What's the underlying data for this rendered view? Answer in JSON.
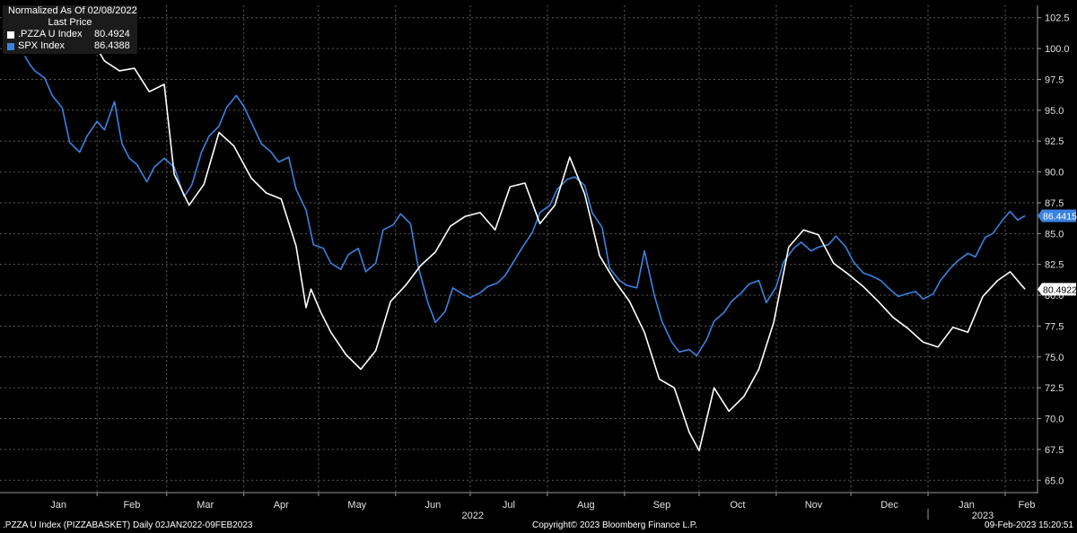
{
  "legend": {
    "header": "Normalized As Of 02/08/2022",
    "subheader": "Last Price"
  },
  "footer": {
    "left": ".PZZA U Index (PIZZABASKET)   Daily 02JAN2022-09FEB2023",
    "center": "Copyright© 2023 Bloomberg Finance L.P.",
    "right": "09-Feb-2023 15:20:51"
  },
  "chart_data": {
    "type": "line",
    "title": "",
    "xlabel": "",
    "ylabel": "",
    "ylim": [
      64.0,
      103.5
    ],
    "yticks": [
      65.0,
      67.5,
      70.0,
      72.5,
      75.0,
      77.5,
      80.0,
      82.5,
      85.0,
      87.5,
      90.0,
      92.5,
      95.0,
      97.5,
      100.0,
      102.5
    ],
    "x_months": [
      "Jan",
      "Feb",
      "Mar",
      "Apr",
      "May",
      "Jun",
      "Jul",
      "Aug",
      "Sep",
      "Oct",
      "Nov",
      "Dec",
      "Jan",
      "Feb"
    ],
    "x_years": [
      "2022",
      "2023"
    ],
    "grid": true,
    "legend_position": "top-left",
    "series": [
      {
        "name": ".PZZA U Index",
        "color": "#ffffff",
        "last_value": "80.4924",
        "axis_label": "80.4922",
        "x": [
          "2022-02-01",
          "2022-02-04",
          "2022-02-10",
          "2022-02-16",
          "2022-02-22",
          "2022-02-28",
          "2022-03-04",
          "2022-03-10",
          "2022-03-16",
          "2022-03-22",
          "2022-03-28",
          "2022-04-04",
          "2022-04-10",
          "2022-04-16",
          "2022-04-22",
          "2022-04-26",
          "2022-04-28",
          "2022-05-02",
          "2022-05-06",
          "2022-05-12",
          "2022-05-18",
          "2022-05-24",
          "2022-05-30",
          "2022-06-05",
          "2022-06-11",
          "2022-06-17",
          "2022-06-23",
          "2022-06-29",
          "2022-07-05",
          "2022-07-11",
          "2022-07-17",
          "2022-07-23",
          "2022-07-29",
          "2022-08-04",
          "2022-08-10",
          "2022-08-16",
          "2022-08-22",
          "2022-08-28",
          "2022-09-03",
          "2022-09-09",
          "2022-09-15",
          "2022-09-21",
          "2022-09-27",
          "2022-10-01",
          "2022-10-07",
          "2022-10-13",
          "2022-10-19",
          "2022-10-25",
          "2022-10-31",
          "2022-11-06",
          "2022-11-12",
          "2022-11-18",
          "2022-11-24",
          "2022-11-30",
          "2022-12-06",
          "2022-12-12",
          "2022-12-18",
          "2022-12-24",
          "2022-12-30",
          "2023-01-05",
          "2023-01-11",
          "2023-01-17",
          "2023-01-23",
          "2023-01-29",
          "2023-02-03",
          "2023-02-09"
        ],
        "values": [
          100.0,
          99.0,
          98.2,
          98.4,
          96.5,
          97.1,
          89.8,
          87.3,
          89.0,
          93.2,
          92.1,
          89.5,
          88.3,
          87.8,
          84.0,
          79.0,
          80.5,
          78.6,
          77.0,
          75.2,
          74.0,
          75.5,
          79.5,
          80.8,
          82.4,
          83.5,
          85.6,
          86.4,
          86.7,
          85.3,
          88.8,
          89.1,
          85.8,
          87.3,
          91.2,
          88.2,
          83.2,
          81.2,
          79.5,
          77.0,
          73.2,
          72.5,
          68.9,
          67.4,
          72.5,
          70.6,
          71.8,
          74.0,
          77.8,
          83.9,
          85.3,
          84.9,
          82.6,
          81.7,
          80.7,
          79.5,
          78.2,
          77.3,
          76.2,
          75.8,
          77.4,
          77.0,
          79.9,
          81.2,
          81.9,
          80.49
        ]
      },
      {
        "name": "SPX Index",
        "color": "#3b82e0",
        "last_value": "86.4388",
        "axis_label": "86.4415",
        "x": [
          "2022-01-03",
          "2022-01-05",
          "2022-01-07",
          "2022-01-11",
          "2022-01-14",
          "2022-01-18",
          "2022-01-21",
          "2022-01-25",
          "2022-01-28",
          "2022-02-01",
          "2022-02-04",
          "2022-02-08",
          "2022-02-11",
          "2022-02-14",
          "2022-02-17",
          "2022-02-21",
          "2022-02-24",
          "2022-02-28",
          "2022-03-04",
          "2022-03-08",
          "2022-03-11",
          "2022-03-15",
          "2022-03-18",
          "2022-03-22",
          "2022-03-25",
          "2022-03-29",
          "2022-04-01",
          "2022-04-05",
          "2022-04-08",
          "2022-04-12",
          "2022-04-15",
          "2022-04-19",
          "2022-04-22",
          "2022-04-26",
          "2022-04-29",
          "2022-05-03",
          "2022-05-06",
          "2022-05-10",
          "2022-05-13",
          "2022-05-17",
          "2022-05-20",
          "2022-05-24",
          "2022-05-27",
          "2022-05-31",
          "2022-06-03",
          "2022-06-07",
          "2022-06-10",
          "2022-06-14",
          "2022-06-17",
          "2022-06-21",
          "2022-06-24",
          "2022-06-28",
          "2022-07-01",
          "2022-07-05",
          "2022-07-08",
          "2022-07-12",
          "2022-07-15",
          "2022-07-19",
          "2022-07-22",
          "2022-07-26",
          "2022-07-29",
          "2022-08-02",
          "2022-08-05",
          "2022-08-09",
          "2022-08-12",
          "2022-08-16",
          "2022-08-19",
          "2022-08-23",
          "2022-08-26",
          "2022-08-30",
          "2022-09-02",
          "2022-09-06",
          "2022-09-09",
          "2022-09-13",
          "2022-09-16",
          "2022-09-20",
          "2022-09-23",
          "2022-09-27",
          "2022-09-30",
          "2022-10-04",
          "2022-10-07",
          "2022-10-11",
          "2022-10-14",
          "2022-10-18",
          "2022-10-21",
          "2022-10-25",
          "2022-10-28",
          "2022-11-01",
          "2022-11-04",
          "2022-11-08",
          "2022-11-11",
          "2022-11-15",
          "2022-11-18",
          "2022-11-22",
          "2022-11-25",
          "2022-11-29",
          "2022-12-02",
          "2022-12-06",
          "2022-12-09",
          "2022-12-13",
          "2022-12-16",
          "2022-12-20",
          "2022-12-23",
          "2022-12-27",
          "2022-12-30",
          "2023-01-03",
          "2023-01-06",
          "2023-01-10",
          "2023-01-13",
          "2023-01-17",
          "2023-01-20",
          "2023-01-24",
          "2023-01-27",
          "2023-01-31",
          "2023-02-03",
          "2023-02-06",
          "2023-02-09"
        ],
        "values": [
          99.4,
          98.7,
          98.2,
          97.6,
          96.2,
          95.2,
          92.4,
          91.6,
          92.9,
          94.1,
          93.4,
          95.7,
          92.3,
          91.1,
          90.6,
          89.2,
          90.4,
          91.1,
          90.4,
          88.0,
          88.9,
          91.6,
          92.9,
          93.7,
          95.2,
          96.2,
          95.3,
          93.6,
          92.3,
          91.6,
          90.8,
          91.2,
          88.6,
          86.9,
          84.1,
          83.8,
          82.6,
          82.1,
          83.3,
          83.8,
          81.9,
          82.6,
          85.3,
          85.7,
          86.6,
          85.8,
          82.4,
          79.4,
          77.8,
          78.7,
          80.6,
          80.1,
          79.8,
          80.2,
          80.7,
          81.0,
          81.6,
          82.9,
          83.9,
          85.1,
          86.7,
          87.3,
          88.6,
          89.4,
          89.6,
          88.9,
          86.7,
          85.5,
          82.2,
          81.2,
          80.8,
          80.6,
          83.6,
          80.0,
          77.9,
          76.2,
          75.4,
          75.6,
          75.1,
          76.4,
          77.9,
          78.6,
          79.5,
          80.2,
          80.9,
          81.2,
          79.4,
          80.7,
          82.7,
          83.8,
          84.3,
          83.6,
          83.9,
          84.1,
          84.8,
          83.9,
          82.7,
          81.8,
          81.6,
          81.2,
          80.6,
          79.9,
          80.1,
          80.3,
          79.7,
          80.1,
          81.2,
          82.2,
          82.8,
          83.4,
          83.1,
          84.7,
          85.0,
          86.1,
          86.8,
          86.1,
          86.44
        ]
      }
    ]
  }
}
